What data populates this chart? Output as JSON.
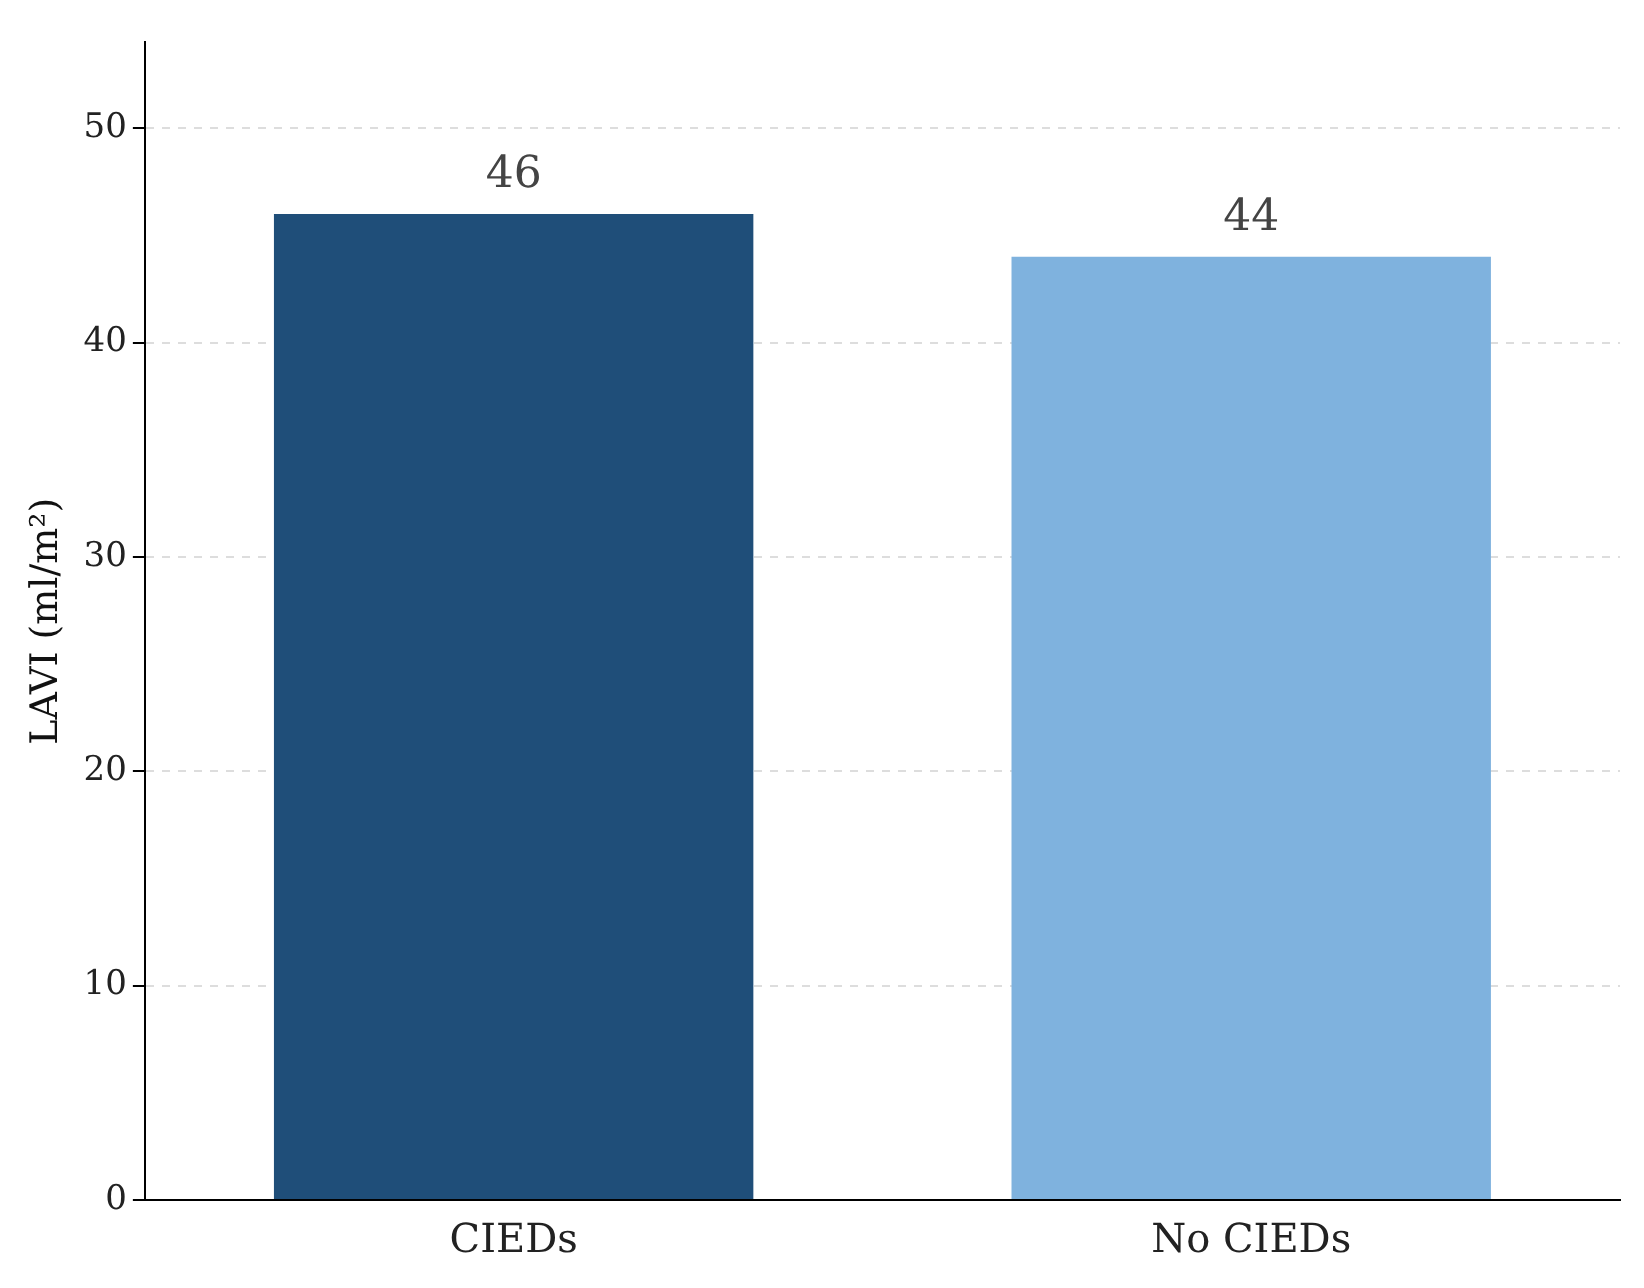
{
  "chart_data": {
    "type": "bar",
    "ylabel": "LAVI (ml/m²)",
    "categories": [
      "CIEDs",
      "No CIEDs"
    ],
    "values": [
      46,
      44
    ],
    "colors": [
      "#1f4e79",
      "#7fb2de"
    ],
    "ylim": [
      0,
      54
    ],
    "yticks": [
      0,
      10,
      20,
      30,
      40,
      50
    ],
    "grid": "y",
    "data_labels": true,
    "legend": false
  }
}
